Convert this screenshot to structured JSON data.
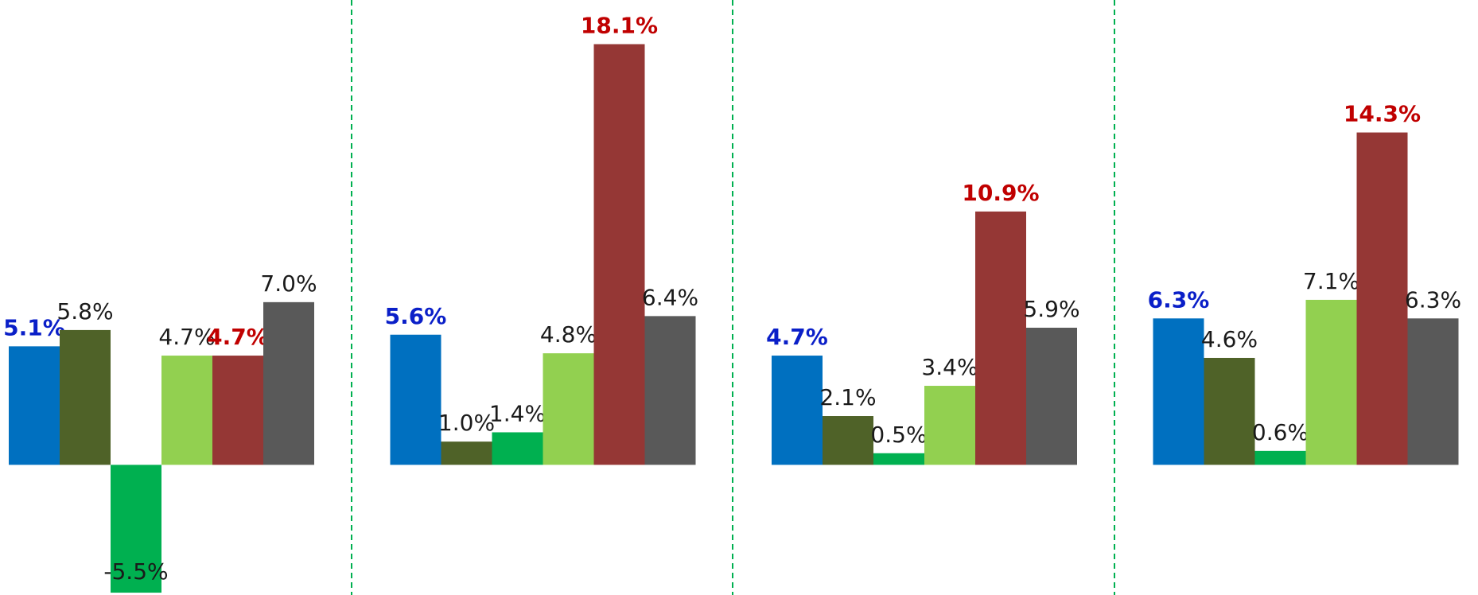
{
  "chart_data": {
    "type": "bar",
    "ylim": [
      -5.6,
      20
    ],
    "series": [
      {
        "color": "#0070c0",
        "values": [
          5.1,
          5.6,
          4.7,
          6.3
        ],
        "value_labels": [
          "5.1%",
          "5.6%",
          "4.7%",
          "6.3%"
        ]
      },
      {
        "color": "#4f6228",
        "values": [
          5.8,
          1.0,
          2.1,
          4.6
        ],
        "value_labels": [
          "5.8%",
          "1.0%",
          "2.1%",
          "4.6%"
        ]
      },
      {
        "color": "#00b050",
        "values": [
          -5.5,
          1.4,
          0.5,
          0.6
        ],
        "value_labels": [
          "-5.5%",
          "1.4%",
          "0.5%",
          "0.6%"
        ]
      },
      {
        "color": "#92d050",
        "values": [
          4.7,
          4.8,
          3.4,
          7.1
        ],
        "value_labels": [
          "4.7%",
          "4.8%",
          "3.4%",
          "7.1%"
        ]
      },
      {
        "color": "#953735",
        "values": [
          4.7,
          18.1,
          10.9,
          14.3
        ],
        "value_labels": [
          "4.7%",
          "18.1%",
          "10.9%",
          "14.3%"
        ]
      },
      {
        "color": "#595959",
        "values": [
          7.0,
          6.4,
          5.9,
          6.3
        ],
        "value_labels": [
          "7.0%",
          "6.4%",
          "5.9%",
          "6.3%"
        ]
      }
    ]
  }
}
